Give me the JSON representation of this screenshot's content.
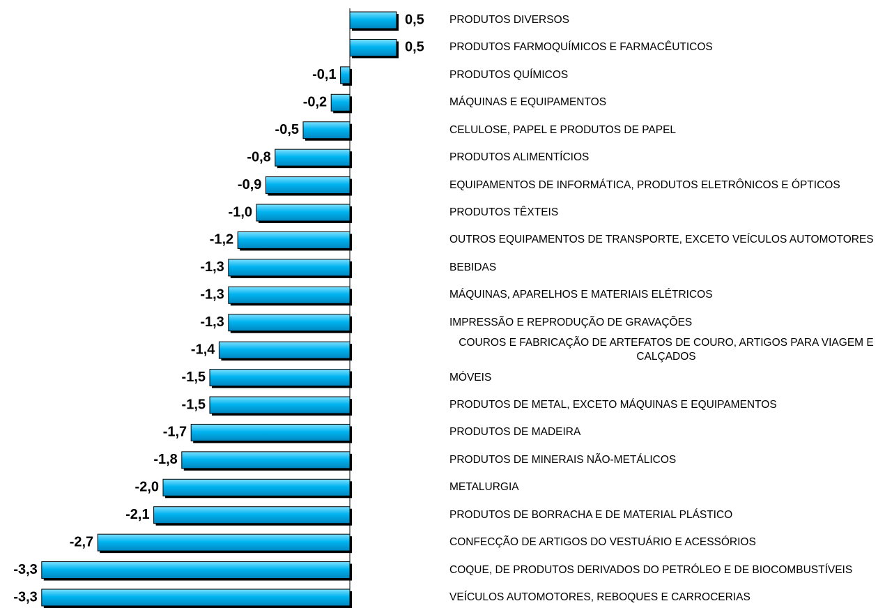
{
  "chart_data": {
    "type": "hbar",
    "categories": [
      "PRODUTOS DIVERSOS",
      "PRODUTOS FARMOQUÍMICOS E FARMACÊUTICOS",
      "PRODUTOS QUÍMICOS",
      "MÁQUINAS E EQUIPAMENTOS",
      "CELULOSE, PAPEL E PRODUTOS DE PAPEL",
      "PRODUTOS ALIMENTÍCIOS",
      "EQUIPAMENTOS DE INFORMÁTICA, PRODUTOS ELETRÔNICOS E ÓPTICOS",
      "PRODUTOS TÊXTEIS",
      "OUTROS EQUIPAMENTOS DE TRANSPORTE, EXCETO VEÍCULOS AUTOMOTORES",
      "BEBIDAS",
      "MÁQUINAS, APARELHOS E MATERIAIS ELÉTRICOS",
      "IMPRESSÃO E REPRODUÇÃO DE GRAVAÇÕES",
      "COUROS E FABRICAÇÃO DE ARTEFATOS DE COURO, ARTIGOS PARA VIAGEM E CALÇADOS",
      "MÓVEIS",
      "PRODUTOS DE METAL, EXCETO MÁQUINAS E EQUIPAMENTOS",
      "PRODUTOS DE MADEIRA",
      "PRODUTOS DE MINERAIS NÃO-METÁLICOS",
      "METALURGIA",
      "PRODUTOS DE BORRACHA E DE MATERIAL PLÁSTICO",
      "CONFECÇÃO DE ARTIGOS DO VESTUÁRIO E ACESSÓRIOS",
      "COQUE, DE PRODUTOS DERIVADOS DO PETRÓLEO E DE BIOCOMBUSTÍVEIS",
      "VEÍCULOS AUTOMOTORES, REBOQUES E CARROCERIAS"
    ],
    "values": [
      0.5,
      0.5,
      -0.1,
      -0.2,
      -0.5,
      -0.8,
      -0.9,
      -1.0,
      -1.2,
      -1.3,
      -1.3,
      -1.3,
      -1.4,
      -1.5,
      -1.5,
      -1.7,
      -1.8,
      -2.0,
      -2.1,
      -2.7,
      -3.3,
      -3.3
    ],
    "value_labels": [
      "0,5",
      "0,5",
      "-0,1",
      "-0,2",
      "-0,5",
      "-0,8",
      "-0,9",
      "-1,0",
      "-1,2",
      "-1,3",
      "-1,3",
      "-1,3",
      "-1,4",
      "-1,5",
      "-1,5",
      "-1,7",
      "-1,8",
      "-2,0",
      "-2,1",
      "-2,7",
      "-3,3",
      "-3,3"
    ],
    "color": "#00b4f0",
    "xlim": [
      -3.5,
      0.6
    ]
  }
}
